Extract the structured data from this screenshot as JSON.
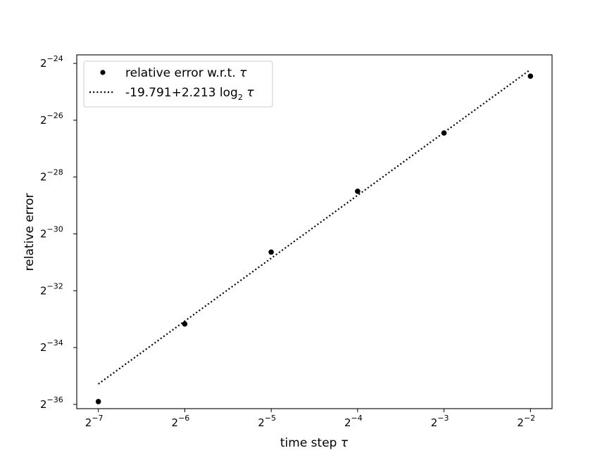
{
  "chart_data": {
    "type": "scatter",
    "xlabel": "time step τ",
    "ylabel": "relative error",
    "xscale": "log2",
    "yscale": "log2",
    "xlim_exp": [
      -7.25,
      -1.75
    ],
    "ylim_exp": [
      -36.15,
      -23.7
    ],
    "x_ticks": [
      {
        "exp": -7,
        "base": "2",
        "sup": "−7"
      },
      {
        "exp": -6,
        "base": "2",
        "sup": "−6"
      },
      {
        "exp": -5,
        "base": "2",
        "sup": "−5"
      },
      {
        "exp": -4,
        "base": "2",
        "sup": "−4"
      },
      {
        "exp": -3,
        "base": "2",
        "sup": "−3"
      },
      {
        "exp": -2,
        "base": "2",
        "sup": "−2"
      }
    ],
    "y_ticks": [
      {
        "exp": -24,
        "base": "2",
        "sup": "−24"
      },
      {
        "exp": -26,
        "base": "2",
        "sup": "−26"
      },
      {
        "exp": -28,
        "base": "2",
        "sup": "−28"
      },
      {
        "exp": -30,
        "base": "2",
        "sup": "−30"
      },
      {
        "exp": -32,
        "base": "2",
        "sup": "−32"
      },
      {
        "exp": -34,
        "base": "2",
        "sup": "−34"
      },
      {
        "exp": -36,
        "base": "2",
        "sup": "−36"
      }
    ],
    "series": [
      {
        "name": "relative error w.r.t. τ",
        "kind": "scatter",
        "color": "#000000",
        "points": [
          {
            "x": "2^-7",
            "y": "2^-35.9"
          },
          {
            "x": "2^-6",
            "y": "2^-33.17"
          },
          {
            "x": "2^-5",
            "y": "2^-30.64"
          },
          {
            "x": "2^-4",
            "y": "2^-28.5"
          },
          {
            "x": "2^-3",
            "y": "2^-26.45"
          },
          {
            "x": "2^-2",
            "y": "2^-24.45"
          }
        ],
        "log2_x": [
          -7,
          -6,
          -5,
          -4,
          -3,
          -2
        ],
        "log2_y": [
          -35.9,
          -33.17,
          -30.64,
          -28.5,
          -26.45,
          -24.45
        ]
      },
      {
        "name": "-19.791+2.213 log₂ τ",
        "kind": "fit-line",
        "style": "dotted",
        "color": "#000000",
        "intercept": -19.791,
        "slope": 2.213,
        "x_range_log2": [
          -7,
          -2
        ]
      }
    ],
    "legend": {
      "position": "top-left",
      "entries": [
        {
          "label_main": "relative error w.r.t. ",
          "label_italic": "τ"
        },
        {
          "label_main": "-19.791+2.213 log",
          "label_sub": "2",
          "label_tail": " ",
          "label_italic": "τ"
        }
      ]
    },
    "xlabel_main": "time step ",
    "xlabel_italic": "τ",
    "grid": false
  }
}
